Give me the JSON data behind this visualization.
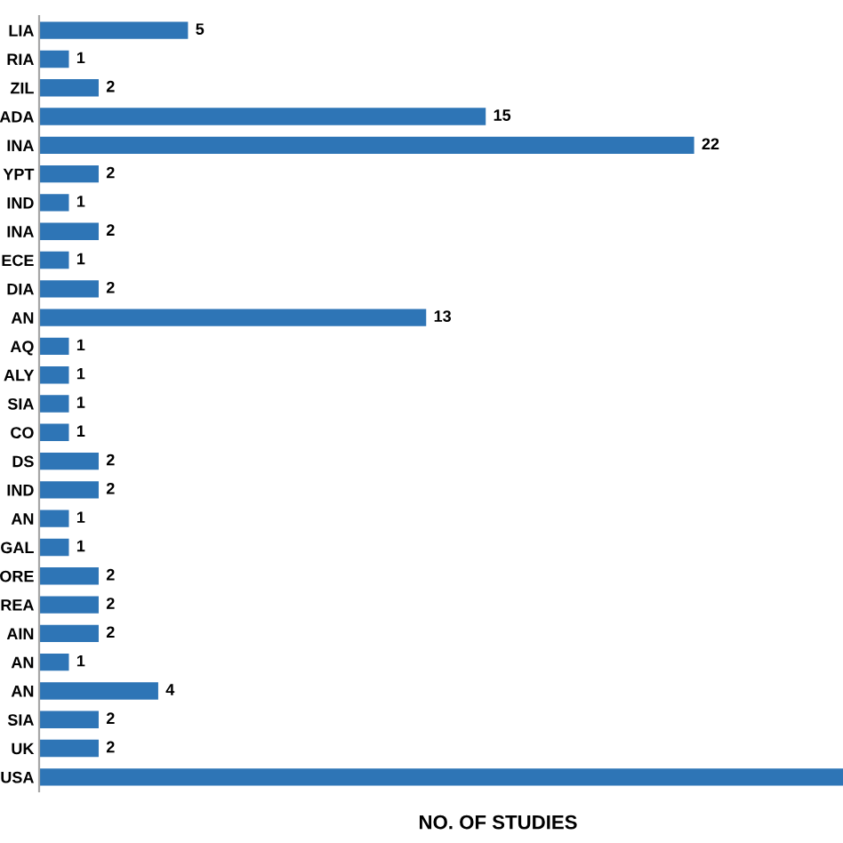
{
  "chart_data": {
    "type": "bar",
    "orientation": "horizontal",
    "xlabel": "NO. OF STUDIES",
    "categories": [
      "LIA",
      "RIA",
      "ZIL",
      "ADA",
      "INA",
      "YPT",
      "IND",
      "INA",
      "ECE",
      "DIA",
      "AN",
      "AQ",
      "ALY",
      "SIA",
      "CO",
      "DS",
      "IND",
      "AN",
      "GAL",
      "ORE",
      "REA",
      "AIN",
      "AN",
      "AN",
      "SIA",
      "UK",
      "USA"
    ],
    "values": [
      5,
      1,
      2,
      15,
      22,
      2,
      1,
      2,
      1,
      2,
      13,
      1,
      1,
      1,
      1,
      2,
      2,
      1,
      1,
      2,
      2,
      2,
      1,
      4,
      2,
      2,
      27
    ],
    "value_labels": [
      "5",
      "1",
      "2",
      "15",
      "22",
      "2",
      "1",
      "2",
      "1",
      "2",
      "13",
      "1",
      "1",
      "1",
      "1",
      "2",
      "2",
      "1",
      "1",
      "2",
      "2",
      "2",
      "1",
      "4",
      "2",
      "2",
      null
    ],
    "color": "#2e75b6",
    "grid": false,
    "legend": false
  }
}
